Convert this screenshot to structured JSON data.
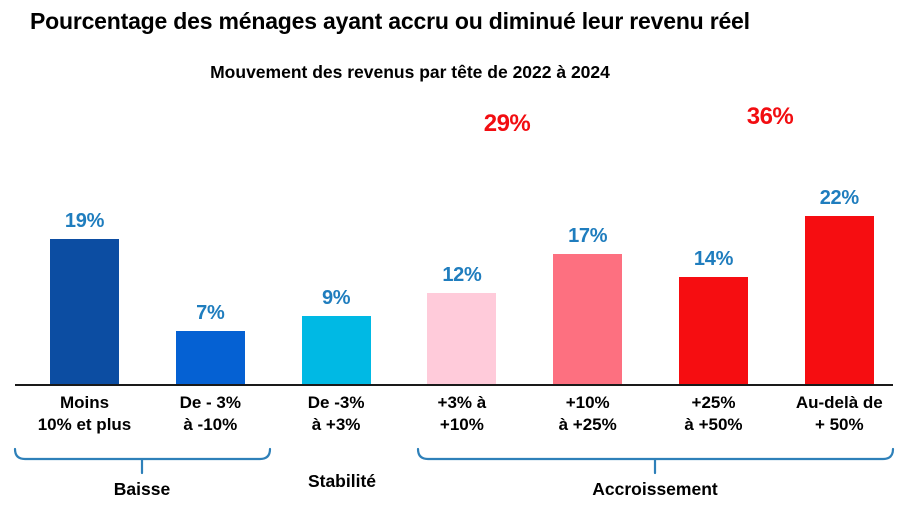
{
  "chart_data": {
    "type": "bar",
    "title": "Pourcentage des ménages ayant accru ou diminué leur revenu réel",
    "subtitle": "Mouvement des revenus par tête de 2022 à 2024",
    "categories": [
      [
        "Moins",
        "10% et plus"
      ],
      [
        "De - 3%",
        "à -10%"
      ],
      [
        "De -3%",
        "à +3%"
      ],
      [
        "+3% à",
        "+10%"
      ],
      [
        "+10%",
        "à +25%"
      ],
      [
        "+25%",
        "à +50%"
      ],
      [
        "Au-delà de",
        "+ 50%"
      ]
    ],
    "values": [
      19,
      7,
      9,
      12,
      17,
      14,
      22
    ],
    "value_labels": [
      "19%",
      "7%",
      "9%",
      "12%",
      "17%",
      "14%",
      "22%"
    ],
    "bar_colors": [
      "#0C4DA2",
      "#0561D3",
      "#00B9E4",
      "#FFCBDA",
      "#FD7080",
      "#F60D11",
      "#F60D11"
    ],
    "value_label_color": "#1F7DBE",
    "xlabel": "",
    "ylabel": "",
    "grid": false,
    "legend": false,
    "y_axis_visible": false,
    "annotations": [
      {
        "text": "29%",
        "above_bar_indexes": [
          3,
          4
        ],
        "color": "#F20D11"
      },
      {
        "text": "36%",
        "above_bar_indexes": [
          5,
          6
        ],
        "color": "#F20D11"
      }
    ],
    "groups": [
      {
        "label": "Baisse",
        "bar_indexes": [
          0,
          1
        ],
        "brace": true
      },
      {
        "label": "Stabilité",
        "bar_indexes": [
          2
        ],
        "brace": false
      },
      {
        "label": "Accroissement",
        "bar_indexes": [
          3,
          4,
          5,
          6
        ],
        "brace": true
      }
    ],
    "brace_color": "#2E80B9"
  }
}
